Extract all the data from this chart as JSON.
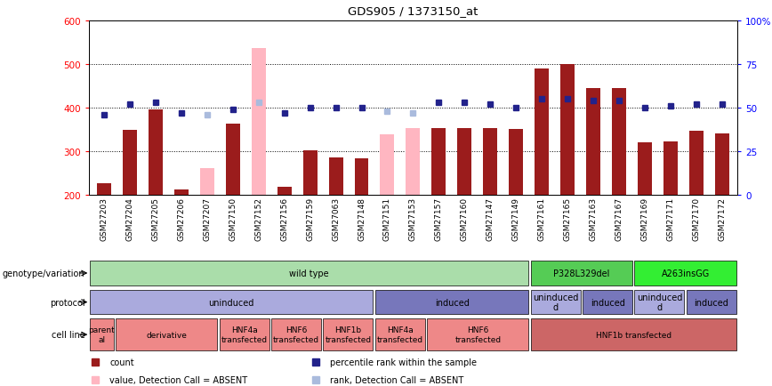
{
  "title": "GDS905 / 1373150_at",
  "samples": [
    "GSM27203",
    "GSM27204",
    "GSM27205",
    "GSM27206",
    "GSM27207",
    "GSM27150",
    "GSM27152",
    "GSM27156",
    "GSM27159",
    "GSM27063",
    "GSM27148",
    "GSM27151",
    "GSM27153",
    "GSM27157",
    "GSM27160",
    "GSM27147",
    "GSM27149",
    "GSM27161",
    "GSM27165",
    "GSM27163",
    "GSM27167",
    "GSM27169",
    "GSM27171",
    "GSM27170",
    "GSM27172"
  ],
  "count_values": [
    225,
    348,
    395,
    212,
    null,
    362,
    null,
    218,
    302,
    286,
    283,
    null,
    null,
    352,
    353,
    352,
    350,
    490,
    499,
    444,
    444,
    319,
    321,
    347,
    340
  ],
  "count_absent": [
    null,
    null,
    null,
    null,
    261,
    null,
    537,
    null,
    null,
    null,
    null,
    338,
    352,
    null,
    null,
    null,
    null,
    null,
    null,
    null,
    null,
    null,
    null,
    null,
    null
  ],
  "rank_values": [
    46,
    52,
    53,
    47,
    null,
    49,
    null,
    47,
    50,
    50,
    50,
    null,
    null,
    53,
    53,
    52,
    50,
    55,
    55,
    54,
    54,
    50,
    51,
    52,
    52
  ],
  "rank_absent": [
    null,
    null,
    null,
    null,
    46,
    null,
    53,
    null,
    null,
    null,
    null,
    48,
    47,
    null,
    null,
    null,
    null,
    null,
    null,
    null,
    null,
    null,
    null,
    null,
    null
  ],
  "ylim_left": [
    200,
    600
  ],
  "ylim_right": [
    0,
    100
  ],
  "yticks_left": [
    200,
    300,
    400,
    500,
    600
  ],
  "yticks_right": [
    0,
    25,
    50,
    75,
    100
  ],
  "ytick_labels_right": [
    "0",
    "25",
    "50",
    "75",
    "100%"
  ],
  "bar_color": "#9B1C1C",
  "bar_absent_color": "#FFB6C1",
  "rank_color": "#22228B",
  "rank_absent_color": "#AABBDD",
  "xname_bg": "#C8C8C8",
  "geno_segs": [
    {
      "label": "wild type",
      "start": 0,
      "end": 17,
      "color": "#AADDAA"
    },
    {
      "label": "P328L329del",
      "start": 17,
      "end": 21,
      "color": "#55CC55"
    },
    {
      "label": "A263insGG",
      "start": 21,
      "end": 25,
      "color": "#33EE33"
    }
  ],
  "proto_segs": [
    {
      "label": "uninduced",
      "start": 0,
      "end": 11,
      "color": "#AAAADD"
    },
    {
      "label": "induced",
      "start": 11,
      "end": 17,
      "color": "#7777BB"
    },
    {
      "label": "uninduced\nd",
      "start": 17,
      "end": 19,
      "color": "#AAAADD"
    },
    {
      "label": "induced",
      "start": 19,
      "end": 21,
      "color": "#7777BB"
    },
    {
      "label": "uninduced\nd",
      "start": 21,
      "end": 23,
      "color": "#AAAADD"
    },
    {
      "label": "induced",
      "start": 23,
      "end": 25,
      "color": "#7777BB"
    }
  ],
  "cell_segs": [
    {
      "label": "parent\nal",
      "start": 0,
      "end": 1,
      "color": "#EE8888"
    },
    {
      "label": "derivative",
      "start": 1,
      "end": 5,
      "color": "#EE8888"
    },
    {
      "label": "HNF4a\ntransfected",
      "start": 5,
      "end": 7,
      "color": "#EE8888"
    },
    {
      "label": "HNF6\ntransfected",
      "start": 7,
      "end": 9,
      "color": "#EE8888"
    },
    {
      "label": "HNF1b\ntransfected",
      "start": 9,
      "end": 11,
      "color": "#EE8888"
    },
    {
      "label": "HNF4a\ntransfected",
      "start": 11,
      "end": 13,
      "color": "#EE8888"
    },
    {
      "label": "HNF6\ntransfected",
      "start": 13,
      "end": 17,
      "color": "#EE8888"
    },
    {
      "label": "HNF1b transfected",
      "start": 17,
      "end": 25,
      "color": "#CC6666"
    }
  ],
  "legend_items": [
    {
      "color": "#9B1C1C",
      "marker": "s",
      "label": "count"
    },
    {
      "color": "#22228B",
      "marker": "s",
      "label": "percentile rank within the sample"
    },
    {
      "color": "#FFB6C1",
      "marker": "s",
      "label": "value, Detection Call = ABSENT"
    },
    {
      "color": "#AABBDD",
      "marker": "s",
      "label": "rank, Detection Call = ABSENT"
    }
  ]
}
